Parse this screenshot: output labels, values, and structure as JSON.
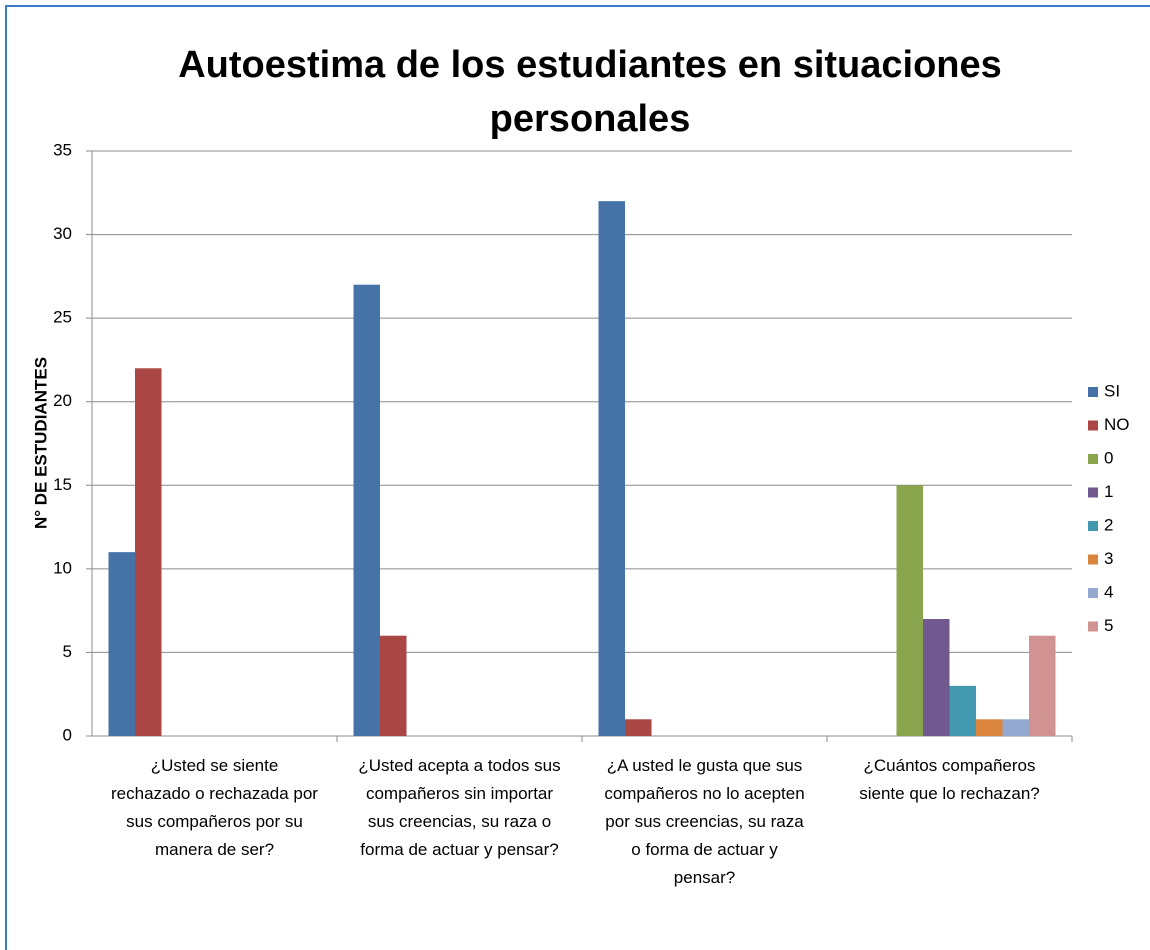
{
  "chart_data": {
    "type": "bar",
    "title": "Autoestima de los estudiantes en situaciones personales",
    "y_label": "N° DE ESTUDIANTES",
    "categories": [
      "¿Usted se siente rechazado o rechazada por sus compañeros por su manera de ser?",
      "¿Usted acepta a todos sus compañeros sin importar sus creencias, su raza o forma de actuar y pensar?",
      "¿A usted le gusta que sus compañeros no lo acepten por sus creencias, su raza o forma de actuar y pensar?",
      "¿Cuántos compañeros siente que lo rechazan?"
    ],
    "series": [
      {
        "name": "SI",
        "color": "#4572a7",
        "values": [
          11,
          27,
          32,
          null
        ]
      },
      {
        "name": "NO",
        "color": "#aa4643",
        "values": [
          22,
          6,
          1,
          null
        ]
      },
      {
        "name": "0",
        "color": "#89a54e",
        "values": [
          null,
          null,
          null,
          15
        ]
      },
      {
        "name": "1",
        "color": "#71588f",
        "values": [
          null,
          null,
          null,
          7
        ]
      },
      {
        "name": "2",
        "color": "#4198af",
        "values": [
          null,
          null,
          null,
          3
        ]
      },
      {
        "name": "3",
        "color": "#db843d",
        "values": [
          null,
          null,
          null,
          1
        ]
      },
      {
        "name": "4",
        "color": "#93a9cf",
        "values": [
          null,
          null,
          null,
          1
        ]
      },
      {
        "name": "5",
        "color": "#d19392",
        "values": [
          null,
          null,
          null,
          6
        ]
      }
    ],
    "ylim": [
      0,
      35
    ],
    "yticks": [
      0,
      5,
      10,
      15,
      20,
      25,
      30,
      35
    ],
    "grid": true,
    "legend": "right"
  }
}
